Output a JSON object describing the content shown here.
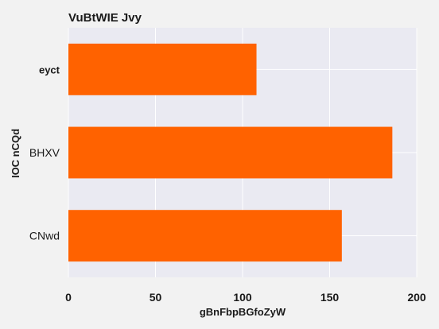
{
  "chart_data": {
    "type": "bar",
    "orientation": "horizontal",
    "title": "VuBtWIE  Jvy",
    "xlabel": "gBnFbpBGfoZyW",
    "ylabel": "IOC  nCQd",
    "categories": [
      "eyct",
      "BHXV",
      "CNwd"
    ],
    "values": [
      108,
      186,
      157
    ],
    "xlim": [
      0,
      200
    ],
    "xticks": [
      0,
      50,
      100,
      150,
      200
    ],
    "grid": true,
    "colors": {
      "bar": "#ff6200",
      "plot_background": "#eaeaf2",
      "grid": "#ffffff",
      "page_background": "#f2f2f2"
    }
  }
}
